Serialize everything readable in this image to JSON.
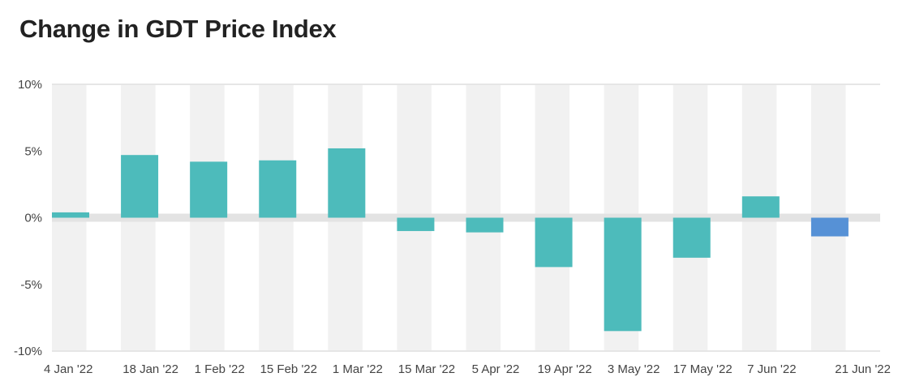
{
  "chart_data": {
    "type": "bar",
    "title": "Change in GDT Price Index",
    "categories": [
      "4 Jan '22",
      "18 Jan '22",
      "1 Feb '22",
      "15 Feb '22",
      "1 Mar '22",
      "15 Mar '22",
      "5 Apr '22",
      "19 Apr '22",
      "3 May '22",
      "17 May '22",
      "7 Jun '22",
      "21 Jun '22"
    ],
    "values": [
      0.4,
      4.7,
      4.2,
      4.3,
      5.2,
      -1.0,
      -1.1,
      -3.7,
      -8.5,
      -3.0,
      1.6,
      -1.4
    ],
    "y_ticks": [
      "10%",
      "5%",
      "0%",
      "-5%",
      "-10%"
    ],
    "y_tick_values": [
      10,
      5,
      0,
      -5,
      -10
    ],
    "ylim": [
      -10,
      10
    ],
    "highlight_index": 11,
    "colors": {
      "bar": "#4dbbbb",
      "highlight": "#5691d6",
      "band": "#f1f1f1",
      "zero_line": "#e3e3e3",
      "grid": "#e6e6e6"
    }
  }
}
